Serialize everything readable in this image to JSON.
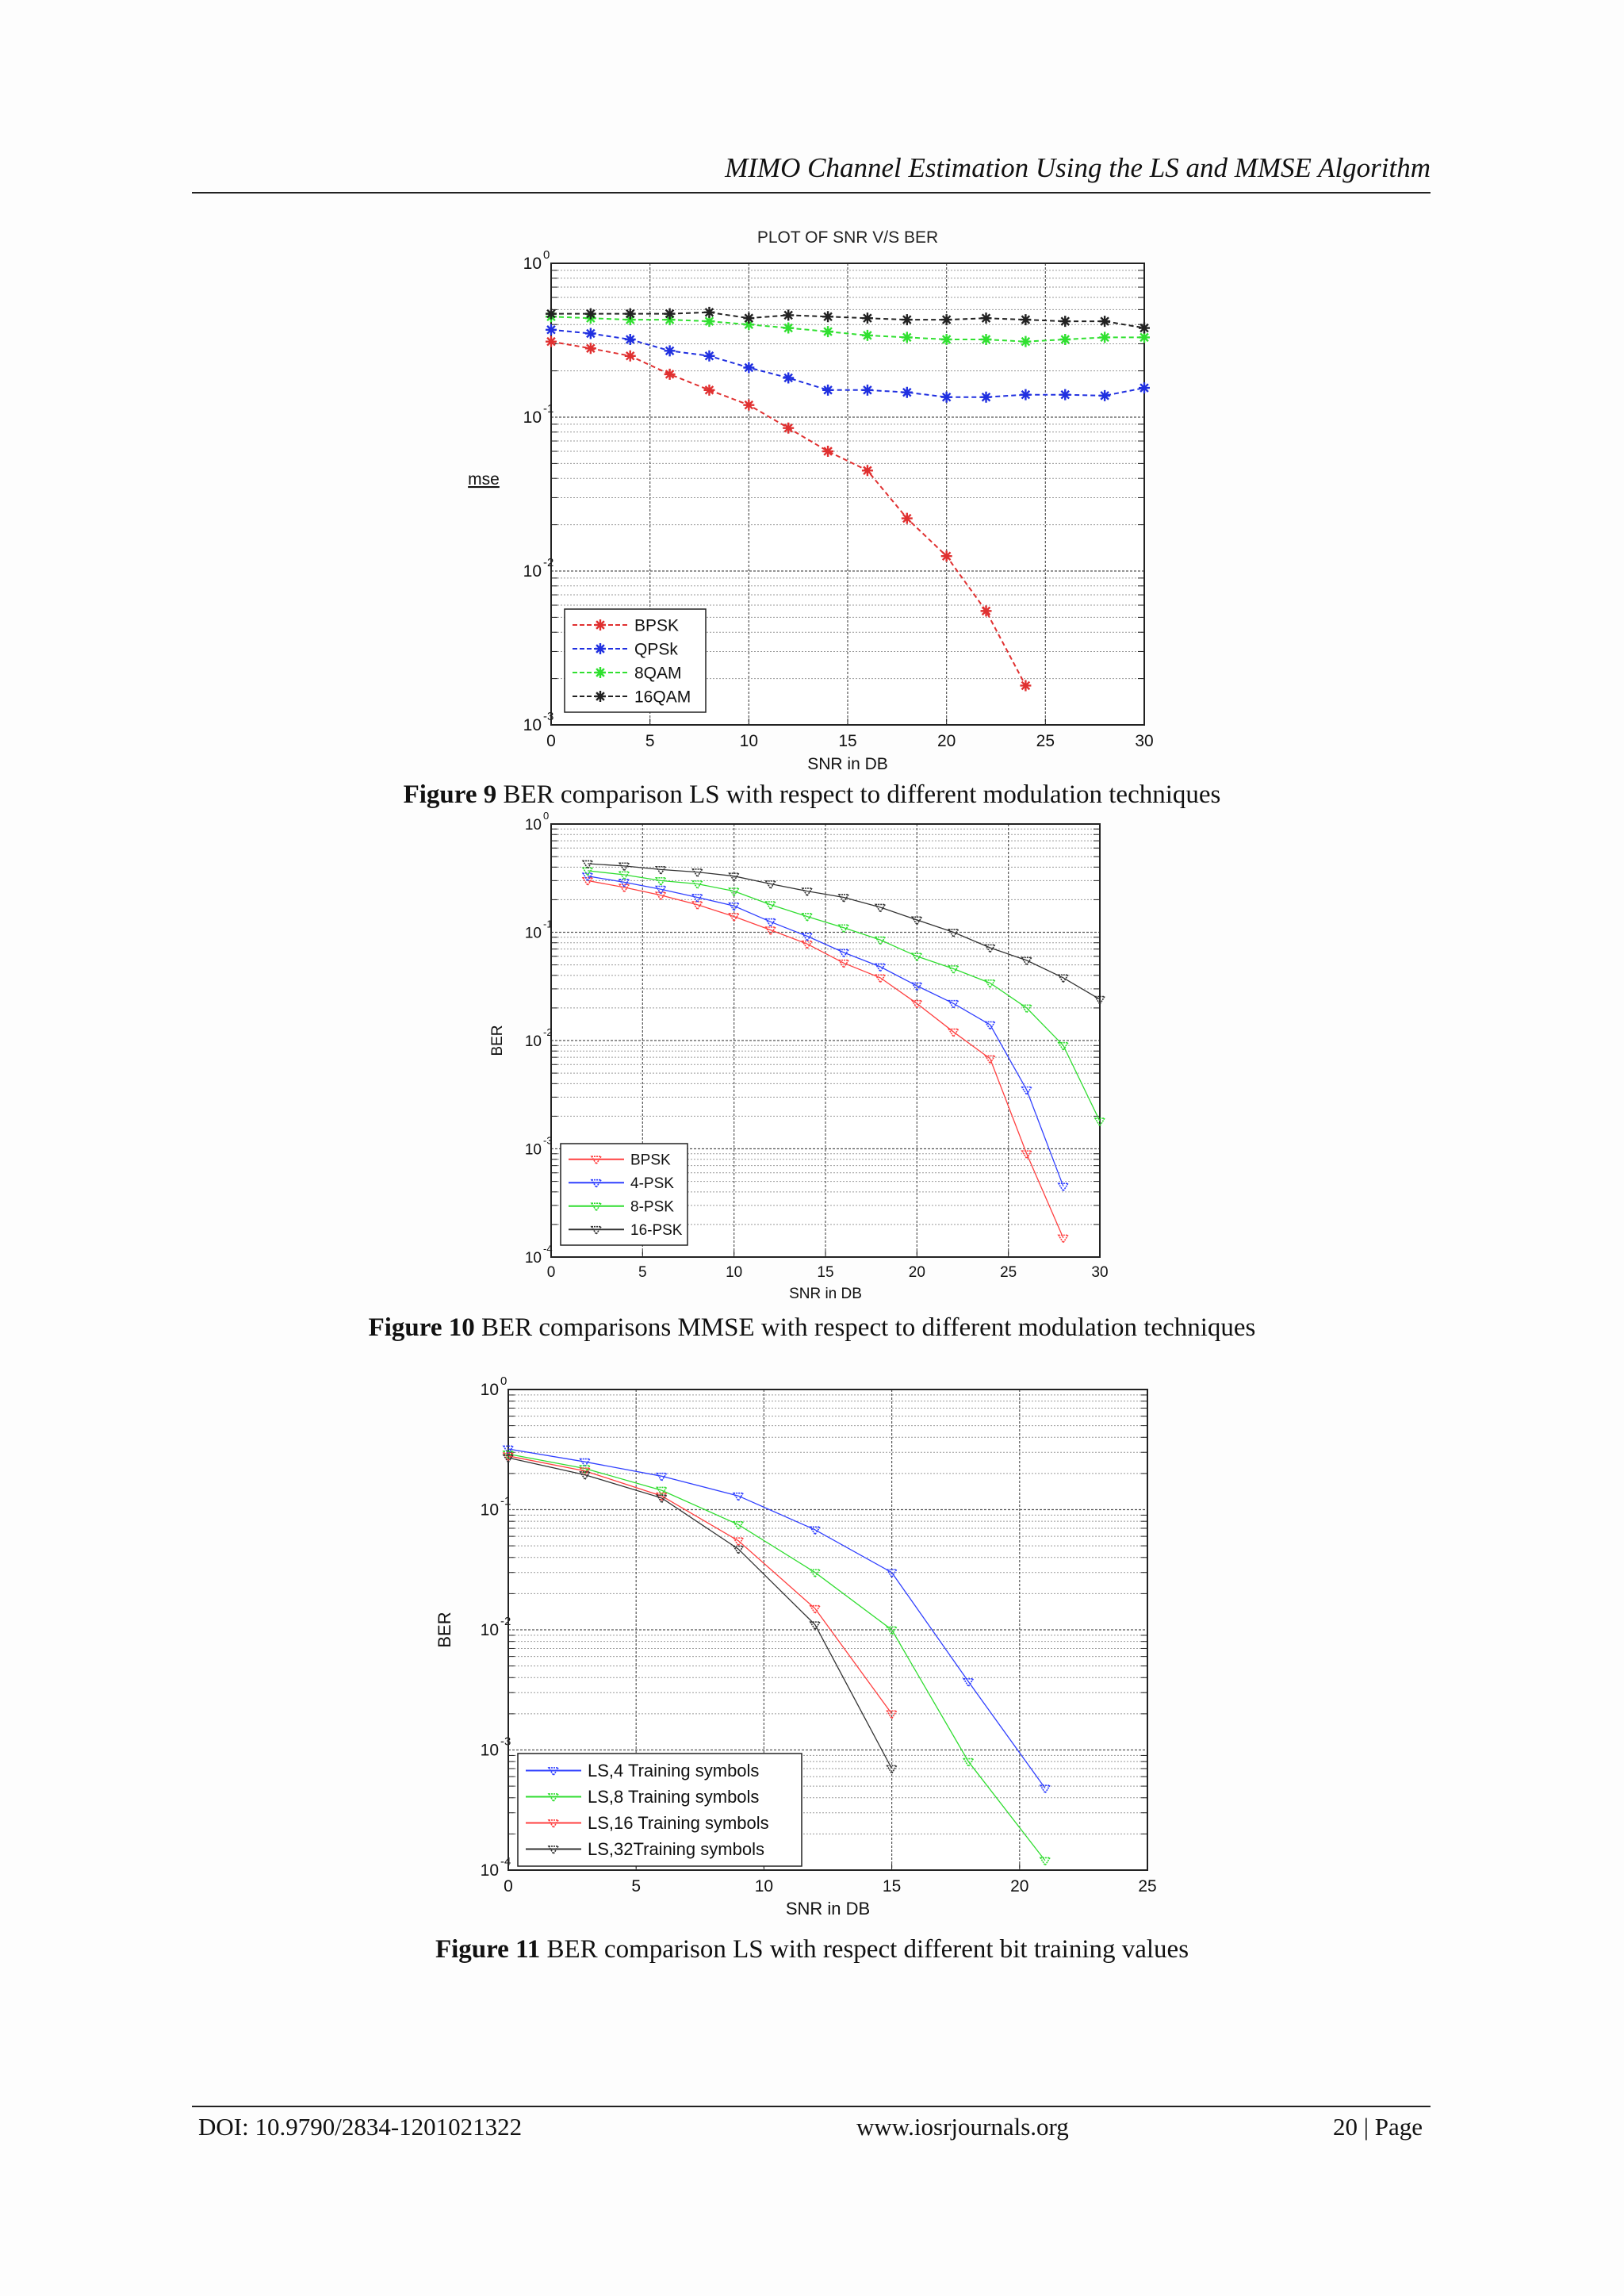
{
  "header": {
    "running_title": "MIMO Channel Estimation Using the LS and MMSE Algorithm"
  },
  "footer": {
    "doi": "DOI: 10.9790/2834-1201021322",
    "url": "www.iosrjournals.org",
    "page": "20 | Page"
  },
  "captions": [
    {
      "label": "Figure 9",
      "text": "BER comparison LS with respect to different modulation techniques"
    },
    {
      "label": "Figure 10",
      "text": "BER comparisons MMSE with respect to different modulation techniques"
    },
    {
      "label": "Figure 11",
      "text": "BER comparison LS with respect different bit training values"
    }
  ],
  "chart_data": [
    {
      "type": "line",
      "title": "PLOT OF SNR V/S BER",
      "xlabel": "SNR in DB",
      "ylabel": "mse",
      "xlim": [
        0,
        30
      ],
      "ylim": [
        0.001,
        1
      ],
      "yscale": "log",
      "xticks": [
        0,
        5,
        10,
        15,
        20,
        25,
        30
      ],
      "grid": true,
      "legend_position": "bottom-left",
      "series": [
        {
          "name": "BPSK",
          "color": "#e03030",
          "marker": "star",
          "x": [
            0,
            2,
            4,
            6,
            8,
            10,
            12,
            14,
            16,
            18,
            20,
            22,
            24
          ],
          "y": [
            0.31,
            0.28,
            0.25,
            0.19,
            0.15,
            0.12,
            0.085,
            0.06,
            0.045,
            0.022,
            0.0125,
            0.0055,
            0.0018
          ]
        },
        {
          "name": "QPSk",
          "color": "#2030e0",
          "marker": "star",
          "x": [
            0,
            2,
            4,
            6,
            8,
            10,
            12,
            14,
            16,
            18,
            20,
            22,
            24,
            26,
            28,
            30
          ],
          "y": [
            0.37,
            0.35,
            0.32,
            0.27,
            0.25,
            0.21,
            0.18,
            0.15,
            0.15,
            0.145,
            0.135,
            0.135,
            0.14,
            0.14,
            0.138,
            0.155
          ]
        },
        {
          "name": "8QAM",
          "color": "#30e030",
          "marker": "star",
          "x": [
            0,
            2,
            4,
            6,
            8,
            10,
            12,
            14,
            16,
            18,
            20,
            22,
            24,
            26,
            28,
            30
          ],
          "y": [
            0.45,
            0.44,
            0.43,
            0.43,
            0.42,
            0.4,
            0.38,
            0.36,
            0.34,
            0.33,
            0.32,
            0.32,
            0.31,
            0.32,
            0.33,
            0.33
          ]
        },
        {
          "name": "16QAM",
          "color": "#222222",
          "marker": "star",
          "x": [
            0,
            2,
            4,
            6,
            8,
            10,
            12,
            14,
            16,
            18,
            20,
            22,
            24,
            26,
            28,
            30
          ],
          "y": [
            0.47,
            0.47,
            0.47,
            0.47,
            0.48,
            0.44,
            0.46,
            0.45,
            0.44,
            0.43,
            0.43,
            0.44,
            0.43,
            0.42,
            0.42,
            0.38
          ]
        }
      ]
    },
    {
      "type": "line",
      "title": "",
      "xlabel": "SNR in DB",
      "ylabel": "BER",
      "xlim": [
        0,
        30
      ],
      "ylim": [
        0.0001,
        1
      ],
      "yscale": "log",
      "xticks": [
        0,
        5,
        10,
        15,
        20,
        25,
        30
      ],
      "grid": true,
      "legend_position": "bottom-left",
      "series": [
        {
          "name": "BPSK",
          "color": "#ff4040",
          "marker": "triangle",
          "x": [
            2,
            4,
            6,
            8,
            10,
            12,
            14,
            16,
            18,
            20,
            22,
            24,
            26,
            28
          ],
          "y": [
            0.3,
            0.26,
            0.22,
            0.18,
            0.14,
            0.105,
            0.078,
            0.052,
            0.038,
            0.022,
            0.012,
            0.0068,
            0.0009,
            0.00015
          ]
        },
        {
          "name": "4-PSK",
          "color": "#3040ff",
          "marker": "triangle",
          "x": [
            2,
            4,
            6,
            8,
            10,
            12,
            14,
            16,
            18,
            20,
            22,
            24,
            26,
            28
          ],
          "y": [
            0.33,
            0.29,
            0.25,
            0.21,
            0.175,
            0.125,
            0.092,
            0.065,
            0.048,
            0.032,
            0.022,
            0.014,
            0.0035,
            0.00045
          ]
        },
        {
          "name": "8-PSK",
          "color": "#30dd30",
          "marker": "triangle",
          "x": [
            2,
            4,
            6,
            8,
            10,
            12,
            14,
            16,
            18,
            20,
            22,
            24,
            26,
            28,
            30
          ],
          "y": [
            0.37,
            0.34,
            0.3,
            0.28,
            0.24,
            0.18,
            0.14,
            0.11,
            0.085,
            0.06,
            0.046,
            0.034,
            0.02,
            0.009,
            0.0018
          ]
        },
        {
          "name": "16-PSK",
          "color": "#333333",
          "marker": "triangle",
          "x": [
            2,
            4,
            6,
            8,
            10,
            12,
            14,
            16,
            18,
            20,
            22,
            24,
            26,
            28,
            30
          ],
          "y": [
            0.43,
            0.41,
            0.38,
            0.36,
            0.33,
            0.28,
            0.24,
            0.21,
            0.17,
            0.13,
            0.1,
            0.072,
            0.055,
            0.038,
            0.024
          ]
        }
      ]
    },
    {
      "type": "line",
      "title": "",
      "xlabel": "SNR in DB",
      "ylabel": "BER",
      "xlim": [
        0,
        25
      ],
      "ylim": [
        0.0001,
        1
      ],
      "yscale": "log",
      "xticks": [
        0,
        5,
        10,
        15,
        20,
        25
      ],
      "grid": true,
      "legend_position": "bottom-left",
      "series": [
        {
          "name": "LS,4 Training symbols",
          "color": "#3040ff",
          "marker": "triangle",
          "x": [
            0,
            3,
            6,
            9,
            12,
            15,
            18,
            21
          ],
          "y": [
            0.32,
            0.25,
            0.19,
            0.13,
            0.068,
            0.03,
            0.0037,
            0.00048
          ]
        },
        {
          "name": "LS,8 Training symbols",
          "color": "#30dd30",
          "marker": "triangle",
          "x": [
            0,
            3,
            6,
            9,
            12,
            15,
            18,
            21
          ],
          "y": [
            0.29,
            0.22,
            0.145,
            0.075,
            0.03,
            0.01,
            0.0008,
            0.00012
          ]
        },
        {
          "name": "LS,16 Training symbols",
          "color": "#ff4040",
          "marker": "triangle",
          "x": [
            0,
            3,
            6,
            9,
            12,
            15
          ],
          "y": [
            0.28,
            0.21,
            0.13,
            0.055,
            0.015,
            0.002
          ]
        },
        {
          "name": "LS,32Training symbols",
          "color": "#333333",
          "marker": "triangle",
          "x": [
            0,
            3,
            6,
            9,
            12,
            15
          ],
          "y": [
            0.27,
            0.195,
            0.125,
            0.047,
            0.011,
            0.0007
          ]
        }
      ]
    }
  ]
}
